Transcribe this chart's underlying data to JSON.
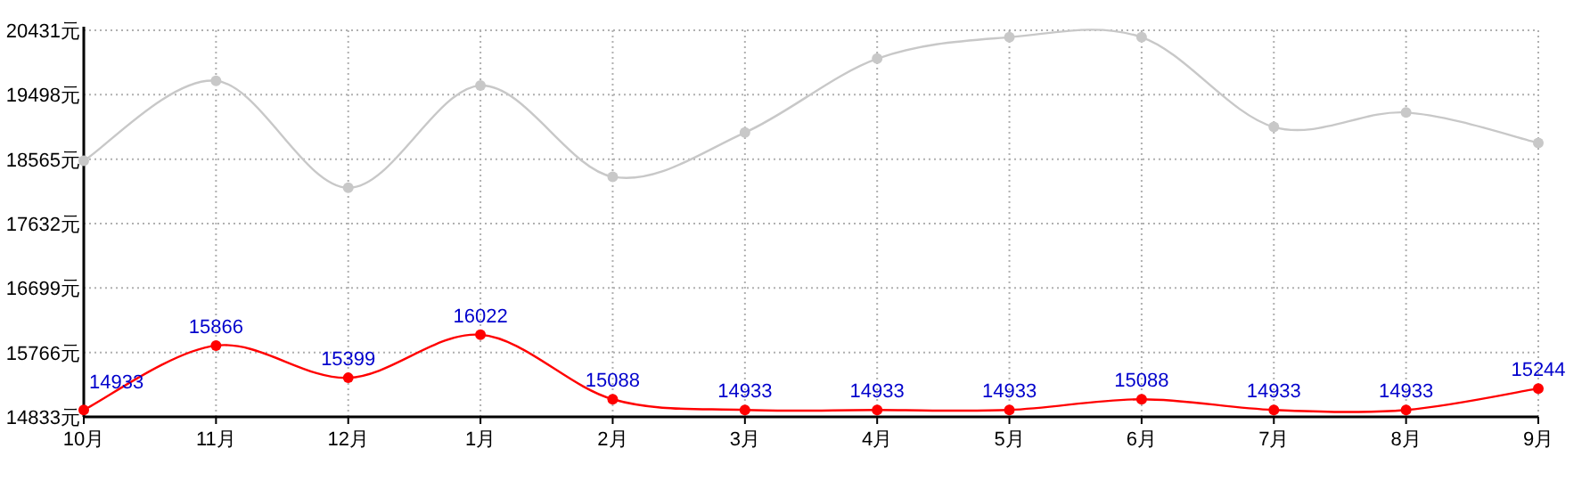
{
  "chart_data": {
    "type": "line",
    "categories": [
      "10月",
      "11月",
      "12月",
      "1月",
      "2月",
      "3月",
      "4月",
      "5月",
      "6月",
      "7月",
      "8月",
      "9月"
    ],
    "series": [
      {
        "color": "#c8c8c8",
        "values": [
          18540,
          19700,
          18150,
          19630,
          18310,
          18950,
          20020,
          20330,
          20330,
          19030,
          19240,
          18800
        ]
      },
      {
        "color": "#ff0000",
        "values": [
          14933,
          15866,
          15399,
          16022,
          15088,
          14933,
          14933,
          14933,
          15088,
          14933,
          14933,
          15244
        ],
        "value_labels": [
          "14933",
          "15866",
          "15399",
          "16022",
          "15088",
          "14933",
          "14933",
          "14933",
          "15088",
          "14933",
          "14933",
          "15244"
        ]
      }
    ],
    "ylim": [
      14833,
      20431
    ],
    "yticks": [
      {
        "value": 14833,
        "label": "14833元"
      },
      {
        "value": 15766,
        "label": "15766元"
      },
      {
        "value": 16699,
        "label": "16699元"
      },
      {
        "value": 17632,
        "label": "17632元"
      },
      {
        "value": 18565,
        "label": "18565元"
      },
      {
        "value": 19498,
        "label": "19498元"
      },
      {
        "value": 20431,
        "label": "20431元"
      }
    ],
    "grid": true,
    "marker": "circle",
    "line_style": "solid"
  }
}
